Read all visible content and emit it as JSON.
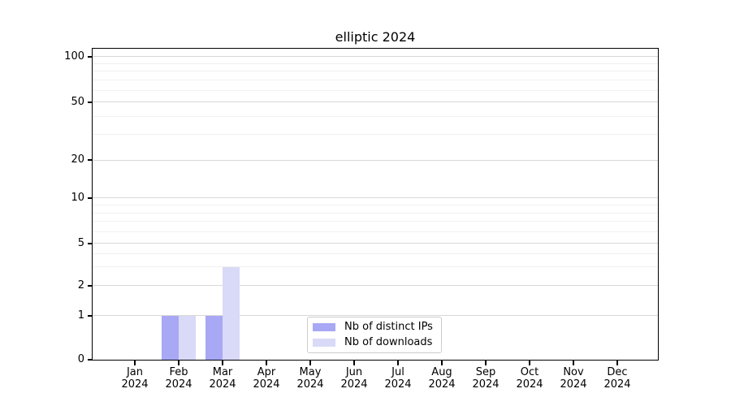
{
  "chart_data": {
    "type": "bar",
    "title": "elliptic 2024",
    "categories": [
      {
        "month": "Jan",
        "year": "2024"
      },
      {
        "month": "Feb",
        "year": "2024"
      },
      {
        "month": "Mar",
        "year": "2024"
      },
      {
        "month": "Apr",
        "year": "2024"
      },
      {
        "month": "May",
        "year": "2024"
      },
      {
        "month": "Jun",
        "year": "2024"
      },
      {
        "month": "Jul",
        "year": "2024"
      },
      {
        "month": "Aug",
        "year": "2024"
      },
      {
        "month": "Sep",
        "year": "2024"
      },
      {
        "month": "Oct",
        "year": "2024"
      },
      {
        "month": "Nov",
        "year": "2024"
      },
      {
        "month": "Dec",
        "year": "2024"
      }
    ],
    "series": [
      {
        "name": "Nb of distinct IPs",
        "color": "#a8a8f5",
        "values": [
          0,
          1,
          1,
          0,
          0,
          0,
          0,
          0,
          0,
          0,
          0,
          0
        ]
      },
      {
        "name": "Nb of downloads",
        "color": "#d9d9f8",
        "values": [
          0,
          1,
          3,
          0,
          0,
          0,
          0,
          0,
          0,
          0,
          0,
          0
        ]
      }
    ],
    "xlabel": "",
    "ylabel": "",
    "yscale": "symlog",
    "yticks": [
      0,
      1,
      2,
      5,
      10,
      20,
      50,
      100
    ],
    "ylim": [
      0,
      120
    ],
    "grid": true,
    "legend_position": "lower-center-inside"
  },
  "colors": {
    "major_grid": "#d8d8d8",
    "minor_grid": "#f0f0f0",
    "spine": "#000000",
    "text": "#000000"
  }
}
